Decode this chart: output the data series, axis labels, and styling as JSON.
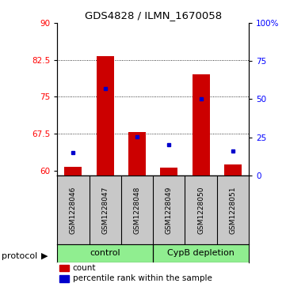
{
  "title": "GDS4828 / ILMN_1670058",
  "samples": [
    "GSM1228046",
    "GSM1228047",
    "GSM1228048",
    "GSM1228049",
    "GSM1228050",
    "GSM1228051"
  ],
  "count_values": [
    60.7,
    83.2,
    67.8,
    60.5,
    79.5,
    61.2
  ],
  "percentile_values": [
    15.0,
    57.0,
    25.5,
    20.0,
    50.0,
    16.0
  ],
  "ylim_left": [
    59.0,
    90.0
  ],
  "ylim_right": [
    0,
    100
  ],
  "yticks_left": [
    60,
    67.5,
    75,
    82.5,
    90
  ],
  "ytick_labels_left": [
    "60",
    "67.5",
    "75",
    "82.5",
    "90"
  ],
  "yticks_right": [
    0,
    25,
    50,
    75,
    100
  ],
  "ytick_labels_right": [
    "0",
    "25",
    "50",
    "75",
    "100%"
  ],
  "bar_color": "#CC0000",
  "dot_color": "#0000CC",
  "bar_bottom": 59.0,
  "dotted_yticks": [
    67.5,
    75.0,
    82.5
  ],
  "sample_bg": "#C8C8C8",
  "proto_bg": "#90EE90",
  "background_color": "#ffffff",
  "control_label": "control",
  "depletion_label": "CypB depletion",
  "protocol_label": "protocol",
  "legend_items": [
    "count",
    "percentile rank within the sample"
  ]
}
